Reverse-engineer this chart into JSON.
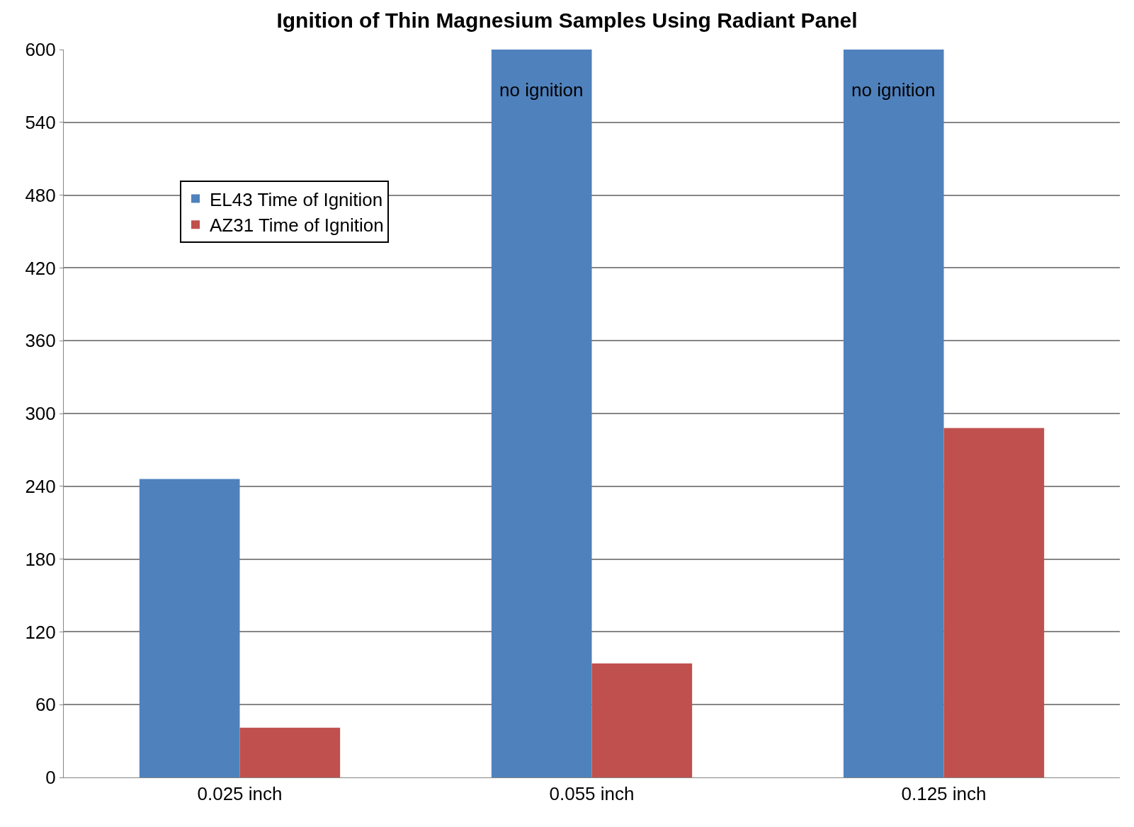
{
  "chart_data": {
    "type": "bar",
    "title": "Ignition of Thin Magnesium Samples Using Radiant Panel",
    "categories": [
      "0.025 inch",
      "0.055 inch",
      "0.125 inch"
    ],
    "series": [
      {
        "name": "EL43 Time of Ignition",
        "color": "#4f81bd",
        "values": [
          246,
          600,
          600
        ]
      },
      {
        "name": "AZ31 Time of Ignition",
        "color": "#c0504d",
        "values": [
          41,
          94,
          288
        ]
      }
    ],
    "ylim": [
      0,
      600
    ],
    "yticks": [
      0,
      60,
      120,
      180,
      240,
      300,
      360,
      420,
      480,
      540,
      600
    ],
    "grid": "y",
    "legend": "top left",
    "annotations": [
      {
        "text": "no ignition",
        "x": "0.055 inch",
        "y": 567
      },
      {
        "text": "no ignition",
        "x": "0.125 inch",
        "y": 567
      }
    ]
  }
}
